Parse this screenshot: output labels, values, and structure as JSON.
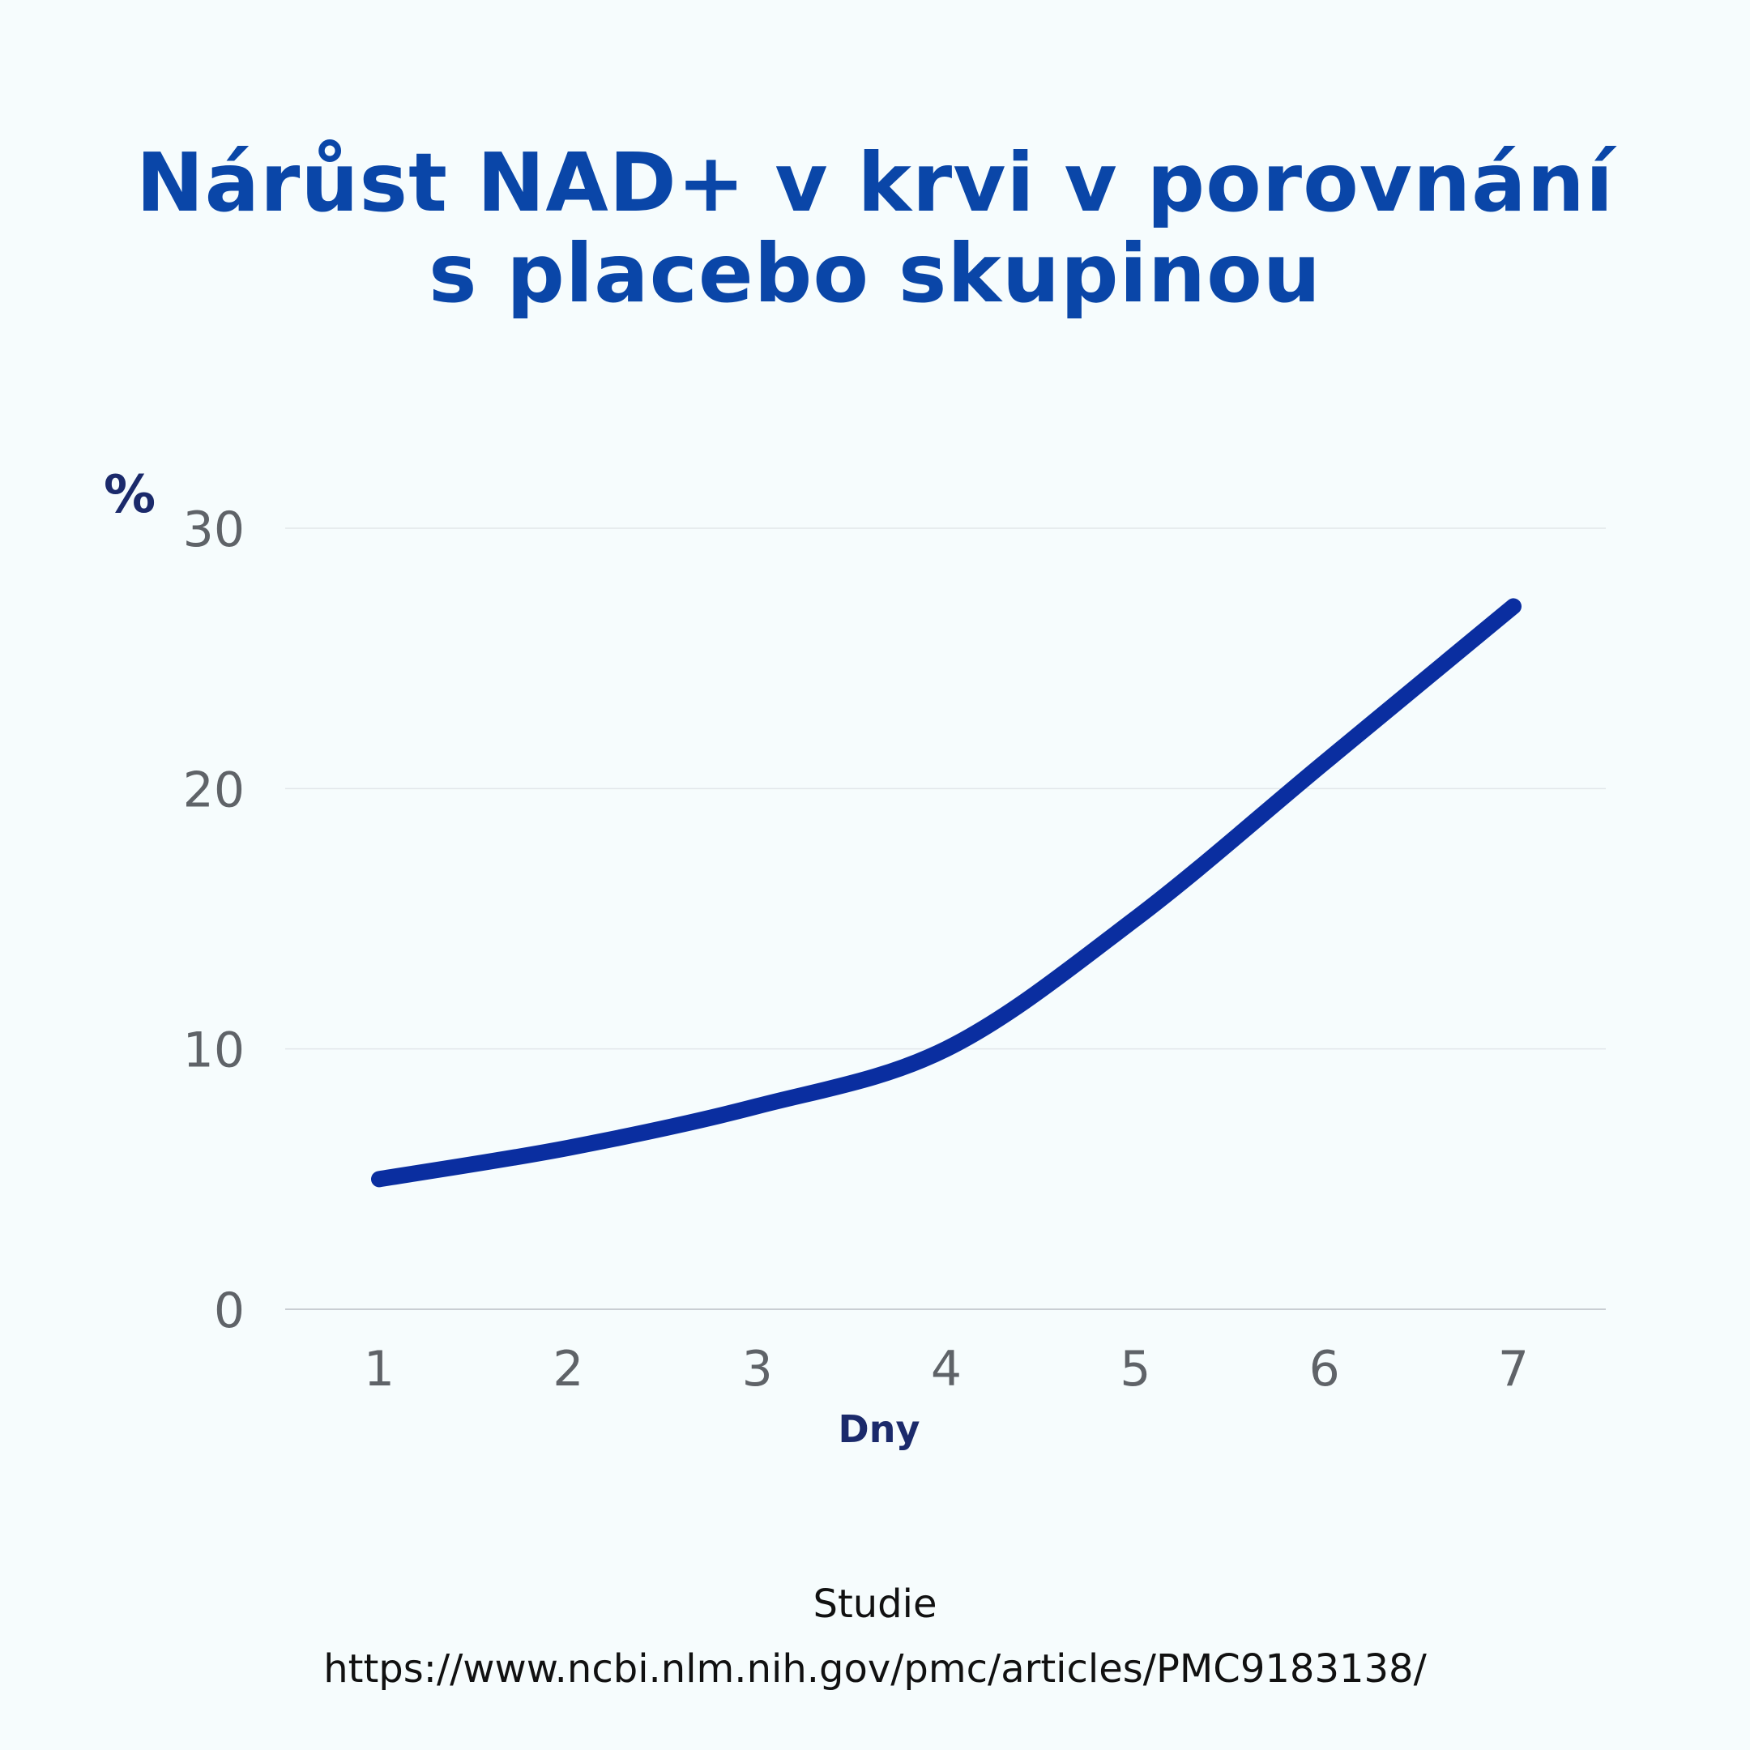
{
  "title": {
    "line1": "Nárůst NAD+ v krvi v porovnání",
    "line2": "s placebo skupinou"
  },
  "source": {
    "label": "Studie",
    "url": "https://www.ncbi.nlm.nih.gov/pmc/articles/PMC9183138/"
  },
  "colors": {
    "title": "#0a46a8",
    "line": "#0a2ea0",
    "axis_label": "#1b2a6b",
    "tick_label": "#5f6368",
    "grid": "#e2e6ea",
    "background": "#f6fcfd"
  },
  "chart_data": {
    "type": "line",
    "x": [
      1,
      2,
      3,
      4,
      5,
      6,
      7
    ],
    "series": [
      {
        "values": [
          5,
          6.2,
          7.8,
          10,
          15,
          21,
          27
        ]
      }
    ],
    "xlabel": "Dny",
    "ylabel": "%",
    "xticks": [
      "1",
      "2",
      "3",
      "4",
      "5",
      "6",
      "7"
    ],
    "yticks": [
      0,
      10,
      20,
      30
    ],
    "ylim": [
      0,
      30
    ],
    "grid": true,
    "legend": "none"
  }
}
